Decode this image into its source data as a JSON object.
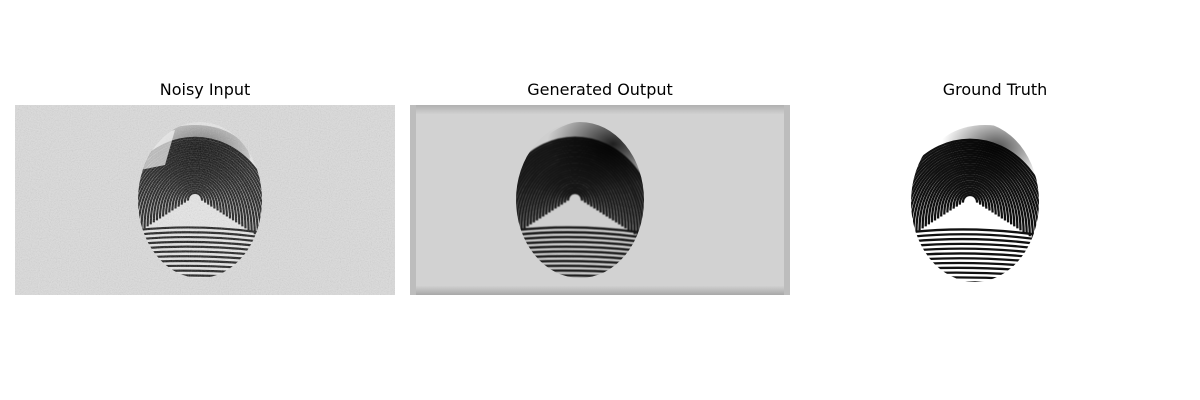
{
  "figure": {
    "panels": [
      {
        "title": "Noisy Input",
        "background": "#dcdcdc",
        "variant": "noisy"
      },
      {
        "title": "Generated Output",
        "background": "#d2d2d2",
        "variant": "generated"
      },
      {
        "title": "Ground Truth",
        "background": "#ffffff",
        "variant": "clean"
      }
    ]
  }
}
